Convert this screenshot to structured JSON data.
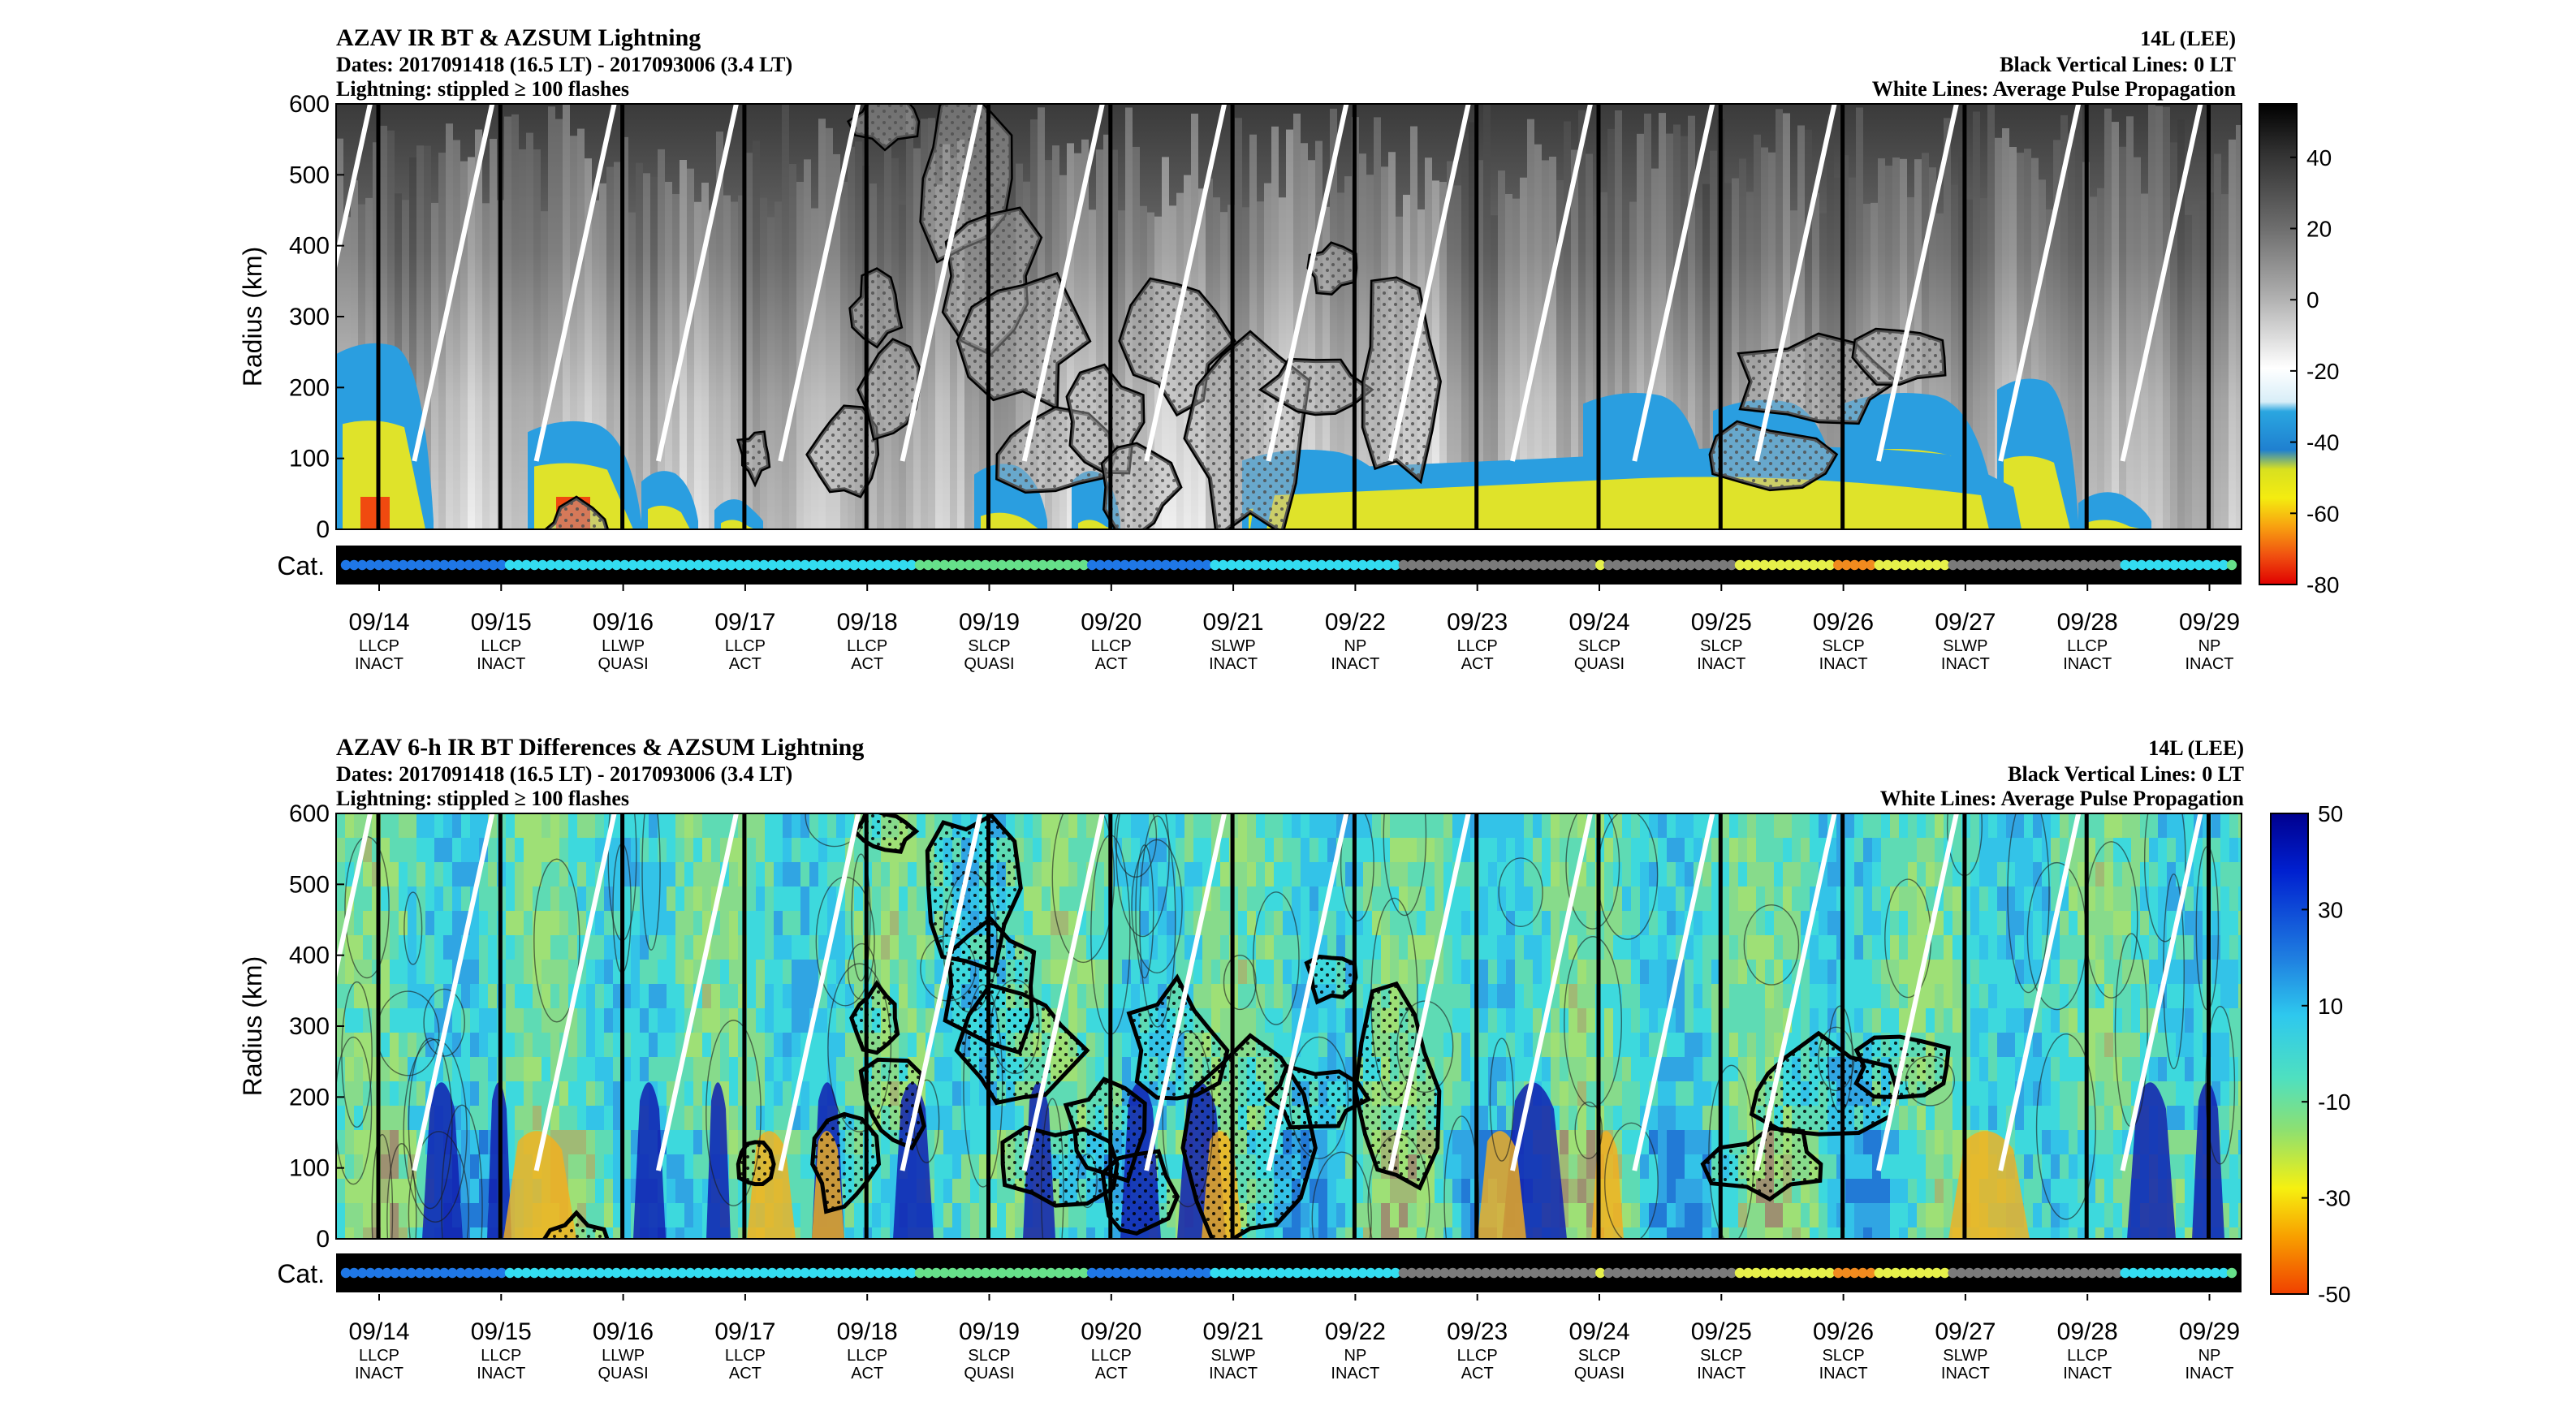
{
  "chart_data": [
    {
      "type": "heatmap",
      "title": "AZAV IR BT & AZSUM Lightning",
      "subtitle_lines": [
        "Dates: 2017091418 (16.5 LT) - 2017093006 (3.4 LT)",
        "Lightning: stippled ≥ 100 flashes"
      ],
      "right_lines": [
        "14L (LEE)",
        "Black Vertical Lines: 0 LT",
        "White Lines: Average Pulse Propagation"
      ],
      "ylabel": "Radius (km)",
      "ylim": [
        0,
        600
      ],
      "yticks": [
        0,
        100,
        200,
        300,
        400,
        500,
        600
      ],
      "colorbar": {
        "ticks": [
          40,
          20,
          0,
          -20,
          -40,
          -60,
          -80
        ],
        "range": [
          -80,
          55
        ],
        "palette": "gray-blue-yellow-red"
      },
      "cat_label": "Cat."
    },
    {
      "type": "heatmap",
      "title": "AZAV 6-h IR BT Differences & AZSUM Lightning",
      "subtitle_lines": [
        "Dates: 2017091418 (16.5 LT) - 2017093006 (3.4 LT)",
        "Lightning: stippled ≥ 100 flashes"
      ],
      "right_lines": [
        "14L (LEE)",
        "Black Vertical Lines: 0 LT",
        "White Lines: Average Pulse Propagation"
      ],
      "ylabel": "Radius (km)",
      "ylim": [
        0,
        600
      ],
      "yticks": [
        0,
        100,
        200,
        300,
        400,
        500,
        600
      ],
      "colorbar": {
        "ticks": [
          50,
          30,
          10,
          -10,
          -30,
          -50
        ],
        "range": [
          -50,
          50
        ],
        "palette": "jet"
      },
      "cat_label": "Cat."
    }
  ],
  "x_axis": {
    "dates": [
      "09/14",
      "09/15",
      "09/16",
      "09/17",
      "09/18",
      "09/19",
      "09/20",
      "09/21",
      "09/22",
      "09/23",
      "09/24",
      "09/25",
      "09/26",
      "09/27",
      "09/28",
      "09/29"
    ],
    "line2": [
      "LLCP",
      "LLCP",
      "LLWP",
      "LLCP",
      "LLCP",
      "SLCP",
      "LLCP",
      "SLWP",
      "NP",
      "LLCP",
      "SLCP",
      "SLCP",
      "SLCP",
      "SLWP",
      "LLCP",
      "NP"
    ],
    "line3": [
      "INACT",
      "INACT",
      "QUASI",
      "ACT",
      "ACT",
      "QUASI",
      "ACT",
      "INACT",
      "INACT",
      "ACT",
      "QUASI",
      "INACT",
      "INACT",
      "INACT",
      "INACT",
      "INACT"
    ]
  },
  "category_dots": {
    "description_colors": {
      "depression": "#1f77e6",
      "storm": "#33dcf0",
      "remnant": "#7a7a7a",
      "green": "#66e08a",
      "yellow": "#e6f04a",
      "orange": "#f08a1e"
    },
    "sequence": "BBBBBBBBBBBBBBBBBBBBCCCCCCCCCCCCCCCCCCCCCCCCCCCCCCCCCCCCCCCCCCCCCCCCCCGGGGGGGGGGGGGGGGGGGGGBBBBBBBBBBBBBBBCCCCCCCCCCCCCCCCCCCCCCCNNNNNNNNNNNNNNNNNNNNNNNNYNNNNNNNNNNNNNNNNYYYYYYYYYYYYOOOOOYYYYYYYYYNNNNNNNNNNNNNNNNNNNNNCCCCCCCCCCCCCG"
  }
}
